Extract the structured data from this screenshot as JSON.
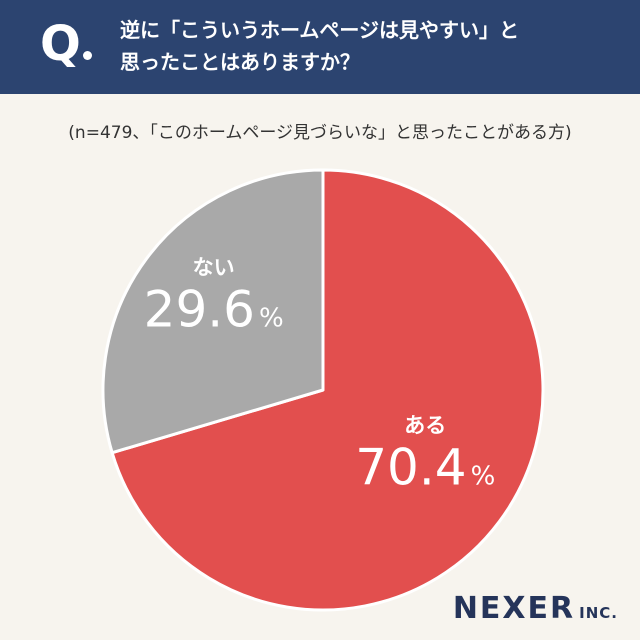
{
  "header": {
    "q_label": "Q",
    "question_line1": "逆に「こういうホームページは見やすい」と",
    "question_line2": "思ったことはありますか？"
  },
  "note": "(n=479、「このホームページ見づらいな」と思ったことがある方)",
  "chart_data": {
    "type": "pie",
    "title": "",
    "slices": [
      {
        "label": "ある",
        "value": 70.4,
        "display": "70.4",
        "color": "#e24f4e"
      },
      {
        "label": "ない",
        "value": 29.6,
        "display": "29.6",
        "color": "#a9a9a9"
      }
    ],
    "unit": "%",
    "start": "top",
    "direction": "clockwise"
  },
  "logo": {
    "main": "NEXER",
    "sub": "INC."
  }
}
